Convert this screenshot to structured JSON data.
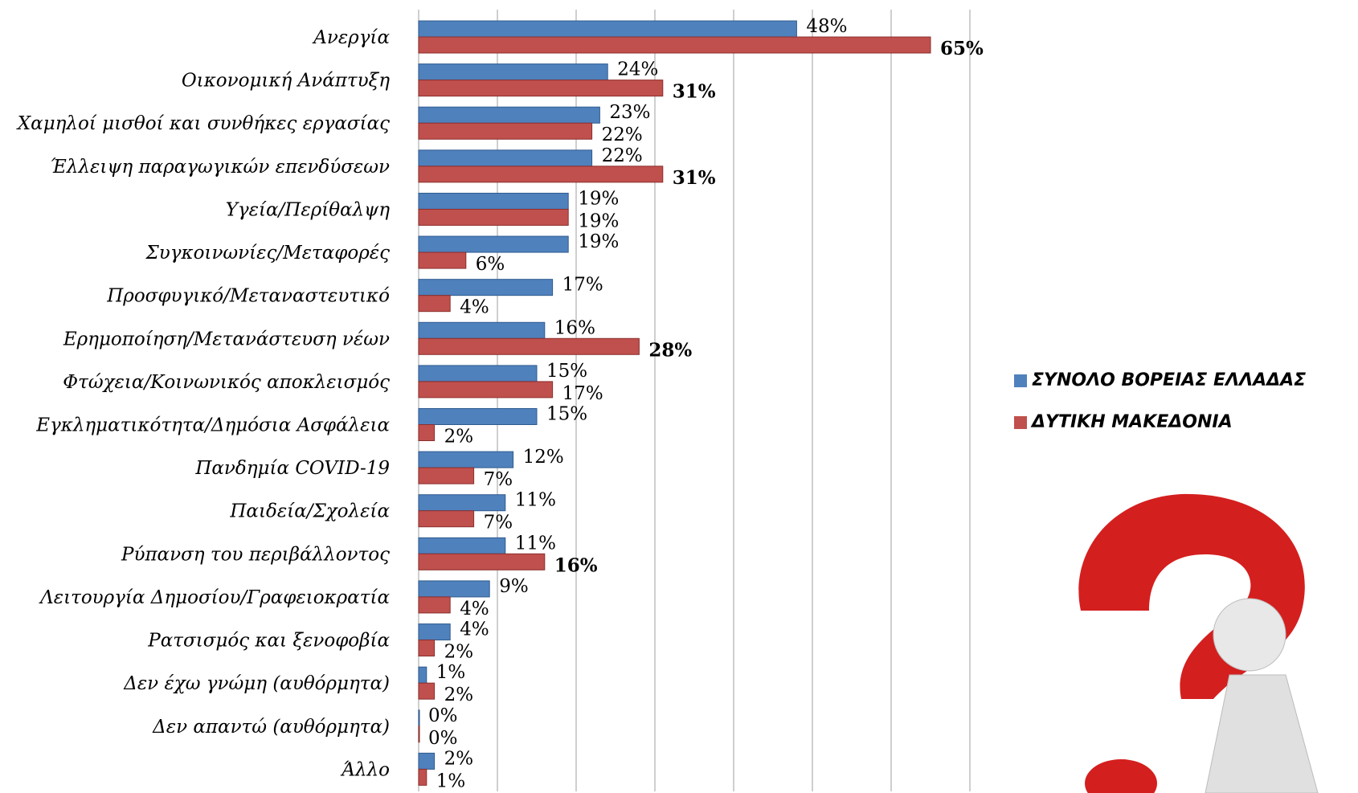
{
  "chart_data": {
    "type": "hbar",
    "categories": [
      "Ανεργία",
      "Οικονομική Ανάπτυξη",
      "Χαμηλοί μισθοί και συνθήκες εργασίας",
      "Έλλειψη παραγωγικών επενδύσεων",
      "Υγεία/Περίθαλψη",
      "Συγκοινωνίες/Μεταφορές",
      "Προσφυγικό/Μεταναστευτικό",
      "Ερημοποίηση/Μετανάστευση νέων",
      "Φτώχεια/Κοινωνικός αποκλεισμός",
      "Εγκληματικότητα/Δημόσια Ασφάλεια",
      "Πανδημία COVID-19",
      "Παιδεία/Σχολεία",
      "Ρύπανση του περιβάλλοντος",
      "Λειτουργία Δημοσίου/Γραφειοκρατία",
      "Ρατσισμός και ξενοφοβία",
      "Δεν έχω γνώμη (αυθόρμητα)",
      "Δεν απαντώ (αυθόρμητα)",
      "Άλλο"
    ],
    "series": [
      {
        "name": "ΣΥΝΟΛΟ ΒΟΡΕΙΑΣ ΕΛΛΑΔΑΣ",
        "color": "#4f81bd",
        "values": [
          48,
          24,
          23,
          22,
          19,
          19,
          17,
          16,
          15,
          15,
          12,
          11,
          11,
          9,
          4,
          1,
          0,
          2
        ],
        "value_labels": [
          "48%",
          "24%",
          "23%",
          "22%",
          "19%",
          "19%",
          "17%",
          "16%",
          "15%",
          "15%",
          "12%",
          "11%",
          "11%",
          "9%",
          "4%",
          "1%",
          "0%",
          "2%"
        ],
        "bold_labels": [
          false,
          false,
          false,
          false,
          false,
          false,
          false,
          false,
          false,
          false,
          false,
          false,
          false,
          false,
          false,
          false,
          false,
          false
        ]
      },
      {
        "name": "ΔΥΤΙΚΗ ΜΑΚΕΔΟΝΙΑ",
        "color": "#c0504d",
        "values": [
          65,
          31,
          22,
          31,
          19,
          6,
          4,
          28,
          17,
          2,
          7,
          7,
          16,
          4,
          2,
          2,
          0,
          1
        ],
        "value_labels": [
          "65%",
          "31%",
          "22%",
          "31%",
          "19%",
          "6%",
          "4%",
          "28%",
          "17%",
          "2%",
          "7%",
          "7%",
          "16%",
          "4%",
          "2%",
          "2%",
          "0%",
          "1%"
        ],
        "bold_labels": [
          true,
          true,
          false,
          true,
          false,
          false,
          false,
          true,
          false,
          false,
          false,
          false,
          true,
          false,
          false,
          false,
          false,
          false
        ]
      }
    ],
    "xlim": [
      0,
      70
    ],
    "xticks": [
      0,
      10,
      20,
      30,
      40,
      50,
      60,
      70
    ],
    "grid": true,
    "legend": "right"
  }
}
